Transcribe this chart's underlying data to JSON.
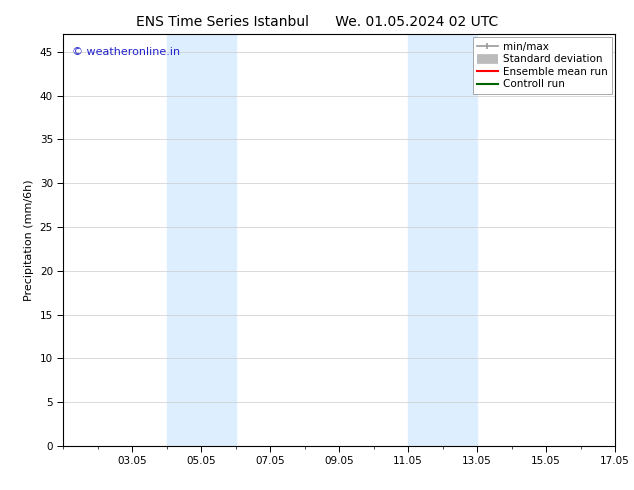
{
  "title_left": "ENS Time Series Istanbul",
  "title_right": "We. 01.05.2024 02 UTC",
  "ylabel": "Precipitation (mm/6h)",
  "ylim": [
    0,
    47
  ],
  "yticks": [
    0,
    5,
    10,
    15,
    20,
    25,
    30,
    35,
    40,
    45
  ],
  "xlim": [
    1,
    17
  ],
  "xtick_positions": [
    3,
    5,
    7,
    9,
    11,
    13,
    15,
    17
  ],
  "xtick_labels": [
    "03.05",
    "05.05",
    "07.05",
    "09.05",
    "11.05",
    "13.05",
    "15.05",
    "17.05"
  ],
  "shaded_regions": [
    {
      "xmin": 4.0,
      "xmax": 6.0
    },
    {
      "xmin": 11.0,
      "xmax": 13.0
    }
  ],
  "shade_color": "#ddeeff",
  "watermark_text": "© weatheronline.in",
  "watermark_color": "#2222cc",
  "legend_entries": [
    {
      "label": "min/max",
      "color": "#999999",
      "lw": 1.2,
      "style": "minmax"
    },
    {
      "label": "Standard deviation",
      "color": "#bbbbbb",
      "lw": 7,
      "style": "thick"
    },
    {
      "label": "Ensemble mean run",
      "color": "#ff0000",
      "lw": 1.5,
      "style": "line"
    },
    {
      "label": "Controll run",
      "color": "#006600",
      "lw": 1.5,
      "style": "line"
    }
  ],
  "bg_color": "#ffffff",
  "grid_color": "#cccccc",
  "title_fontsize": 10,
  "tick_fontsize": 7.5,
  "ylabel_fontsize": 8,
  "watermark_fontsize": 8,
  "legend_fontsize": 7.5
}
